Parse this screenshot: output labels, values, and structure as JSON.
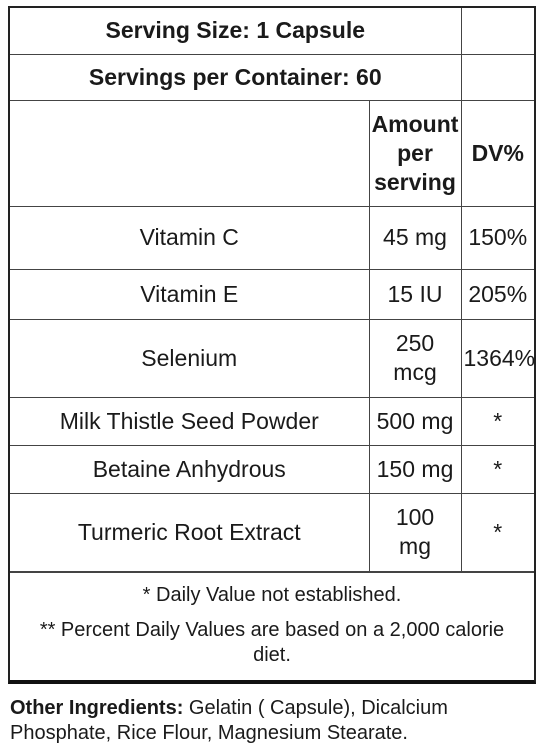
{
  "serving_size": "Serving Size: 1 Capsule",
  "servings_per_container": "Servings per Container: 60",
  "columns": {
    "amount_line1": "Amount",
    "amount_line2": "per",
    "amount_line3": "serving",
    "dv": "DV%"
  },
  "rows": [
    {
      "name": "Vitamin C",
      "amount": "45 mg",
      "dv": "150%"
    },
    {
      "name": "Vitamin E",
      "amount": "15 IU",
      "dv": "205%"
    },
    {
      "name": "Selenium",
      "amount_line1": "250",
      "amount_line2": "mcg",
      "dv": "1364%"
    },
    {
      "name": "Milk Thistle Seed Powder",
      "amount": "500 mg",
      "dv": "*"
    },
    {
      "name": "Betaine Anhydrous",
      "amount": "150 mg",
      "dv": "*"
    },
    {
      "name": "Turmeric Root Extract",
      "amount_line1": "100",
      "amount_line2": "mg",
      "dv": "*"
    }
  ],
  "footnotes": {
    "daily_value": "* Daily Value not established.",
    "percent_dv_line1": "** Percent Daily Values are based on a 2,000 calorie",
    "percent_dv_line2": "diet."
  },
  "other_ingredients": {
    "label": "Other Ingredients:",
    "text_line1": " Gelatin ( Capsule), Dicalcium",
    "text_line2": "Phosphate, Rice Flour, Magnesium Stearate."
  }
}
